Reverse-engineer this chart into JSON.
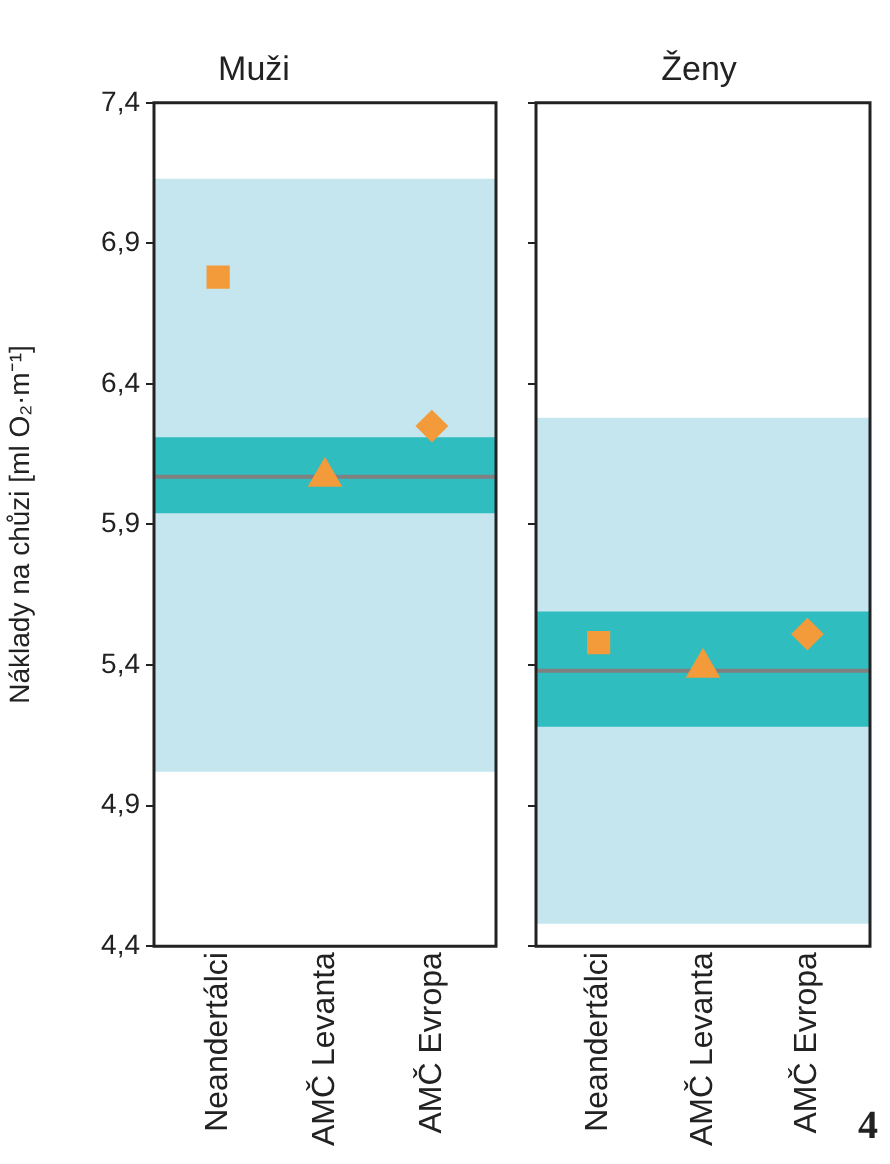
{
  "chart_data": [
    {
      "type": "scatter",
      "title": "Muži",
      "ylabel": "Náklady na chůzi [ml O₂·m⁻¹]",
      "categories": [
        "Neandertálci",
        "AMČ Levanta",
        "AMČ Evropa"
      ],
      "series": [
        {
          "color": "#f39a3a",
          "marker": "square",
          "values": [
            6.78,
            null,
            null
          ]
        },
        {
          "color": "#f39a3a",
          "marker": "triangle",
          "values": [
            null,
            6.07,
            null
          ]
        },
        {
          "color": "#f39a3a",
          "marker": "diamond",
          "values": [
            null,
            null,
            6.25
          ]
        }
      ],
      "ylim": [
        4.4,
        7.4
      ],
      "yticks": [
        {
          "value": 4.4,
          "label": "4,4"
        },
        {
          "value": 4.9,
          "label": "4,9"
        },
        {
          "value": 5.4,
          "label": "5,4"
        },
        {
          "value": 5.9,
          "label": "5,9"
        },
        {
          "value": 6.4,
          "label": "6,4"
        },
        {
          "value": 6.9,
          "label": "6,9"
        },
        {
          "value": 7.4,
          "label": "7,4"
        }
      ],
      "bands": [
        {
          "axis": "y",
          "from": 5.02,
          "to": 7.13,
          "color": "#c5e6ef"
        },
        {
          "axis": "y",
          "from": 5.94,
          "to": 6.21,
          "color": "#2fbdc0"
        }
      ],
      "ref_lines": [
        {
          "axis": "y",
          "value": 6.07,
          "color": "#808080"
        }
      ],
      "grid": false,
      "legend": false
    },
    {
      "type": "scatter",
      "title": "Ženy",
      "categories": [
        "Neandertálci",
        "AMČ Levanta",
        "AMČ Evropa"
      ],
      "series": [
        {
          "color": "#f39a3a",
          "marker": "square",
          "values": [
            5.48,
            null,
            null
          ]
        },
        {
          "color": "#f39a3a",
          "marker": "triangle",
          "values": [
            null,
            5.39,
            null
          ]
        },
        {
          "color": "#f39a3a",
          "marker": "diamond",
          "values": [
            null,
            null,
            5.51
          ]
        }
      ],
      "ylim": [
        4.4,
        7.4
      ],
      "yticks": [
        4.4,
        4.9,
        5.4,
        5.9,
        6.4,
        6.9,
        7.4
      ],
      "tick_labels": "x",
      "bands": [
        {
          "axis": "y",
          "from": 4.48,
          "to": 6.28,
          "color": "#c5e6ef"
        },
        {
          "axis": "y",
          "from": 5.18,
          "to": 5.59,
          "color": "#2fbdc0"
        }
      ],
      "ref_lines": [
        {
          "axis": "y",
          "value": 5.38,
          "color": "#808080"
        }
      ],
      "annotations": [
        "4"
      ],
      "grid": false,
      "legend": false
    }
  ]
}
